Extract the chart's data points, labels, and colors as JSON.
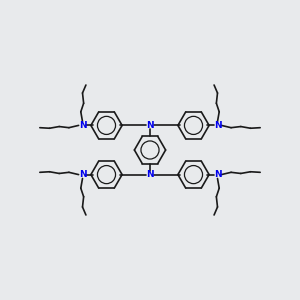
{
  "background_color": "#e8eaec",
  "bond_color": "#1a1a1a",
  "nitrogen_color": "#0000ee",
  "bond_width": 1.2,
  "figsize": [
    3.0,
    3.0
  ],
  "dpi": 100,
  "xlim": [
    0,
    10
  ],
  "ylim": [
    0,
    10
  ],
  "ring_r": 0.52,
  "seg": 0.38,
  "n_fontsize": 6.5
}
